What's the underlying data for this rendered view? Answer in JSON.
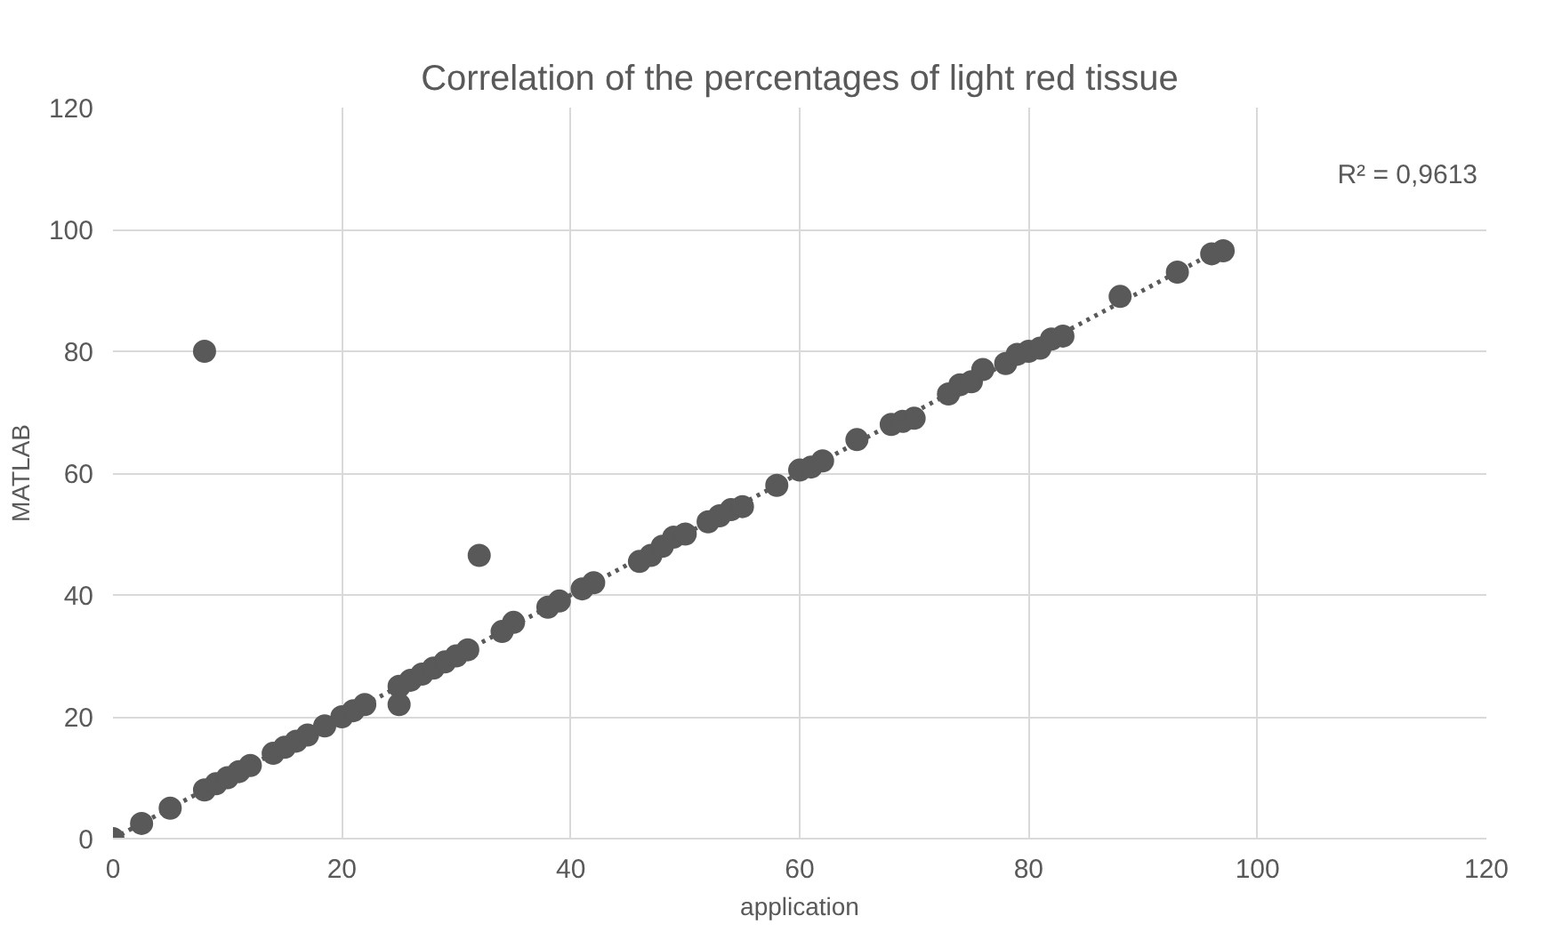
{
  "chart_data": {
    "type": "scatter",
    "title": "Correlation of the percentages of light red tissue",
    "xlabel": "application",
    "ylabel": "MATLAB",
    "xlim": [
      0,
      120
    ],
    "ylim": [
      0,
      120
    ],
    "xticks": [
      0,
      20,
      40,
      60,
      80,
      100,
      120
    ],
    "yticks": [
      0,
      20,
      40,
      60,
      80,
      100,
      120
    ],
    "grid": true,
    "annotations": [
      "R² = 0,9613"
    ],
    "series": [
      {
        "color": "#595959",
        "marker": "circle",
        "x": [
          0,
          2.5,
          5,
          8,
          9,
          10,
          11,
          12,
          14,
          15,
          16,
          17,
          18.5,
          20,
          21,
          22,
          25,
          25,
          26,
          27,
          28,
          29,
          30,
          31,
          32,
          8,
          34,
          35,
          38,
          39,
          41,
          42,
          46,
          47,
          48,
          49,
          50,
          52,
          53,
          54,
          55,
          58,
          60,
          61,
          62,
          65,
          68,
          69,
          70,
          73,
          74,
          75,
          76,
          78,
          79,
          80,
          81,
          82,
          83,
          88,
          93,
          96,
          97
        ],
        "values": [
          0,
          2.5,
          5,
          8,
          9,
          10,
          11,
          12,
          14,
          15,
          16,
          17,
          18.5,
          20,
          21,
          22,
          22,
          25,
          26,
          27,
          28,
          29,
          30,
          31,
          46.5,
          80,
          34,
          35.5,
          38,
          39,
          41,
          42,
          45.5,
          46.5,
          48,
          49.5,
          50,
          52,
          53,
          54,
          54.5,
          58,
          60.5,
          61,
          62,
          65.5,
          68,
          68.5,
          69,
          73,
          74.5,
          75,
          77,
          78,
          79.5,
          80,
          80.5,
          82,
          82.5,
          89,
          93,
          96,
          96.5
        ]
      },
      {
        "type": "line",
        "color": "#595959",
        "line_style": "dotted",
        "marker": "none",
        "x": [
          0,
          97
        ],
        "values": [
          0,
          97
        ]
      }
    ]
  }
}
